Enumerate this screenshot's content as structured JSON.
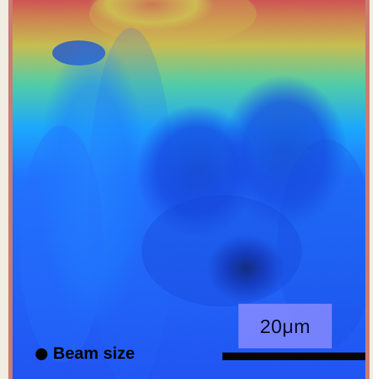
{
  "image": {
    "scale_label": "20μm",
    "beam_label": "Beam size",
    "colors": {
      "background": "#f1ede3",
      "frame": "#c97d73",
      "map_base": "#1a3df0",
      "scale_box": "#8e8eff",
      "scale_text": "#070a2c",
      "scale_bar": "#050505",
      "beam_dot": "#000000"
    }
  }
}
